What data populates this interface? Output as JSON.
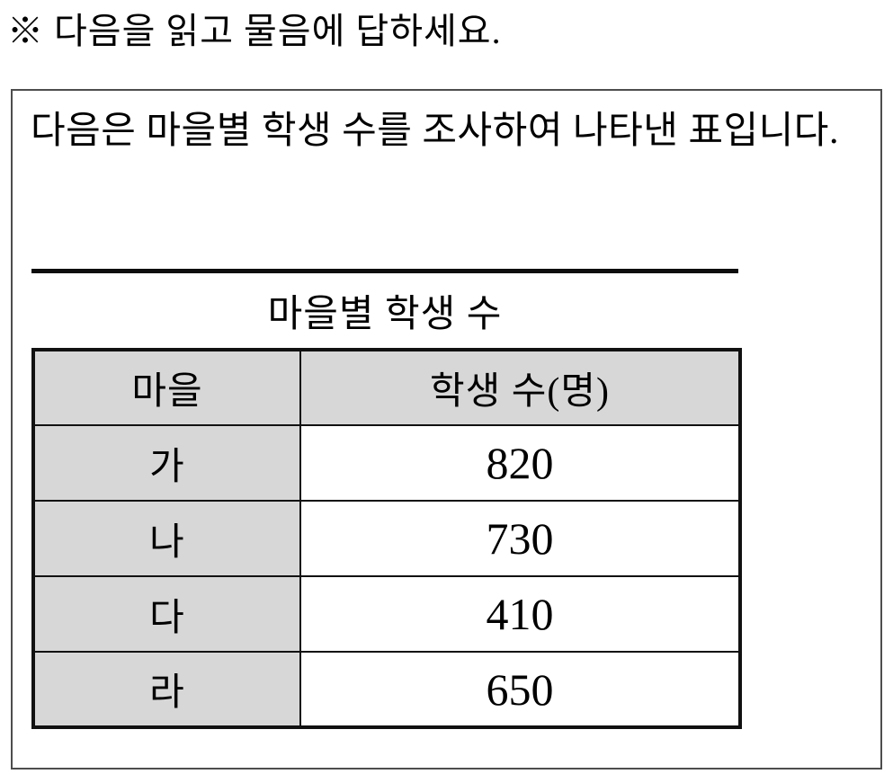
{
  "page": {
    "instruction": "※ 다음을 읽고 물음에 답하세요."
  },
  "box": {
    "intro": "다음은 마을별 학생 수를 조사하여 나타낸 표입니다.",
    "table_title": "마을별 학생 수",
    "table": {
      "columns": [
        "마을",
        "학생 수(명)"
      ],
      "rows": [
        {
          "village": "가",
          "count": "820"
        },
        {
          "village": "나",
          "count": "730"
        },
        {
          "village": "다",
          "count": "410"
        },
        {
          "village": "라",
          "count": "650"
        }
      ]
    }
  },
  "colors": {
    "shaded_cell_bg": "#d7d7d7",
    "table_border": "#111111",
    "box_border": "#4d4d4d",
    "text": "#000000",
    "background": "#ffffff"
  }
}
